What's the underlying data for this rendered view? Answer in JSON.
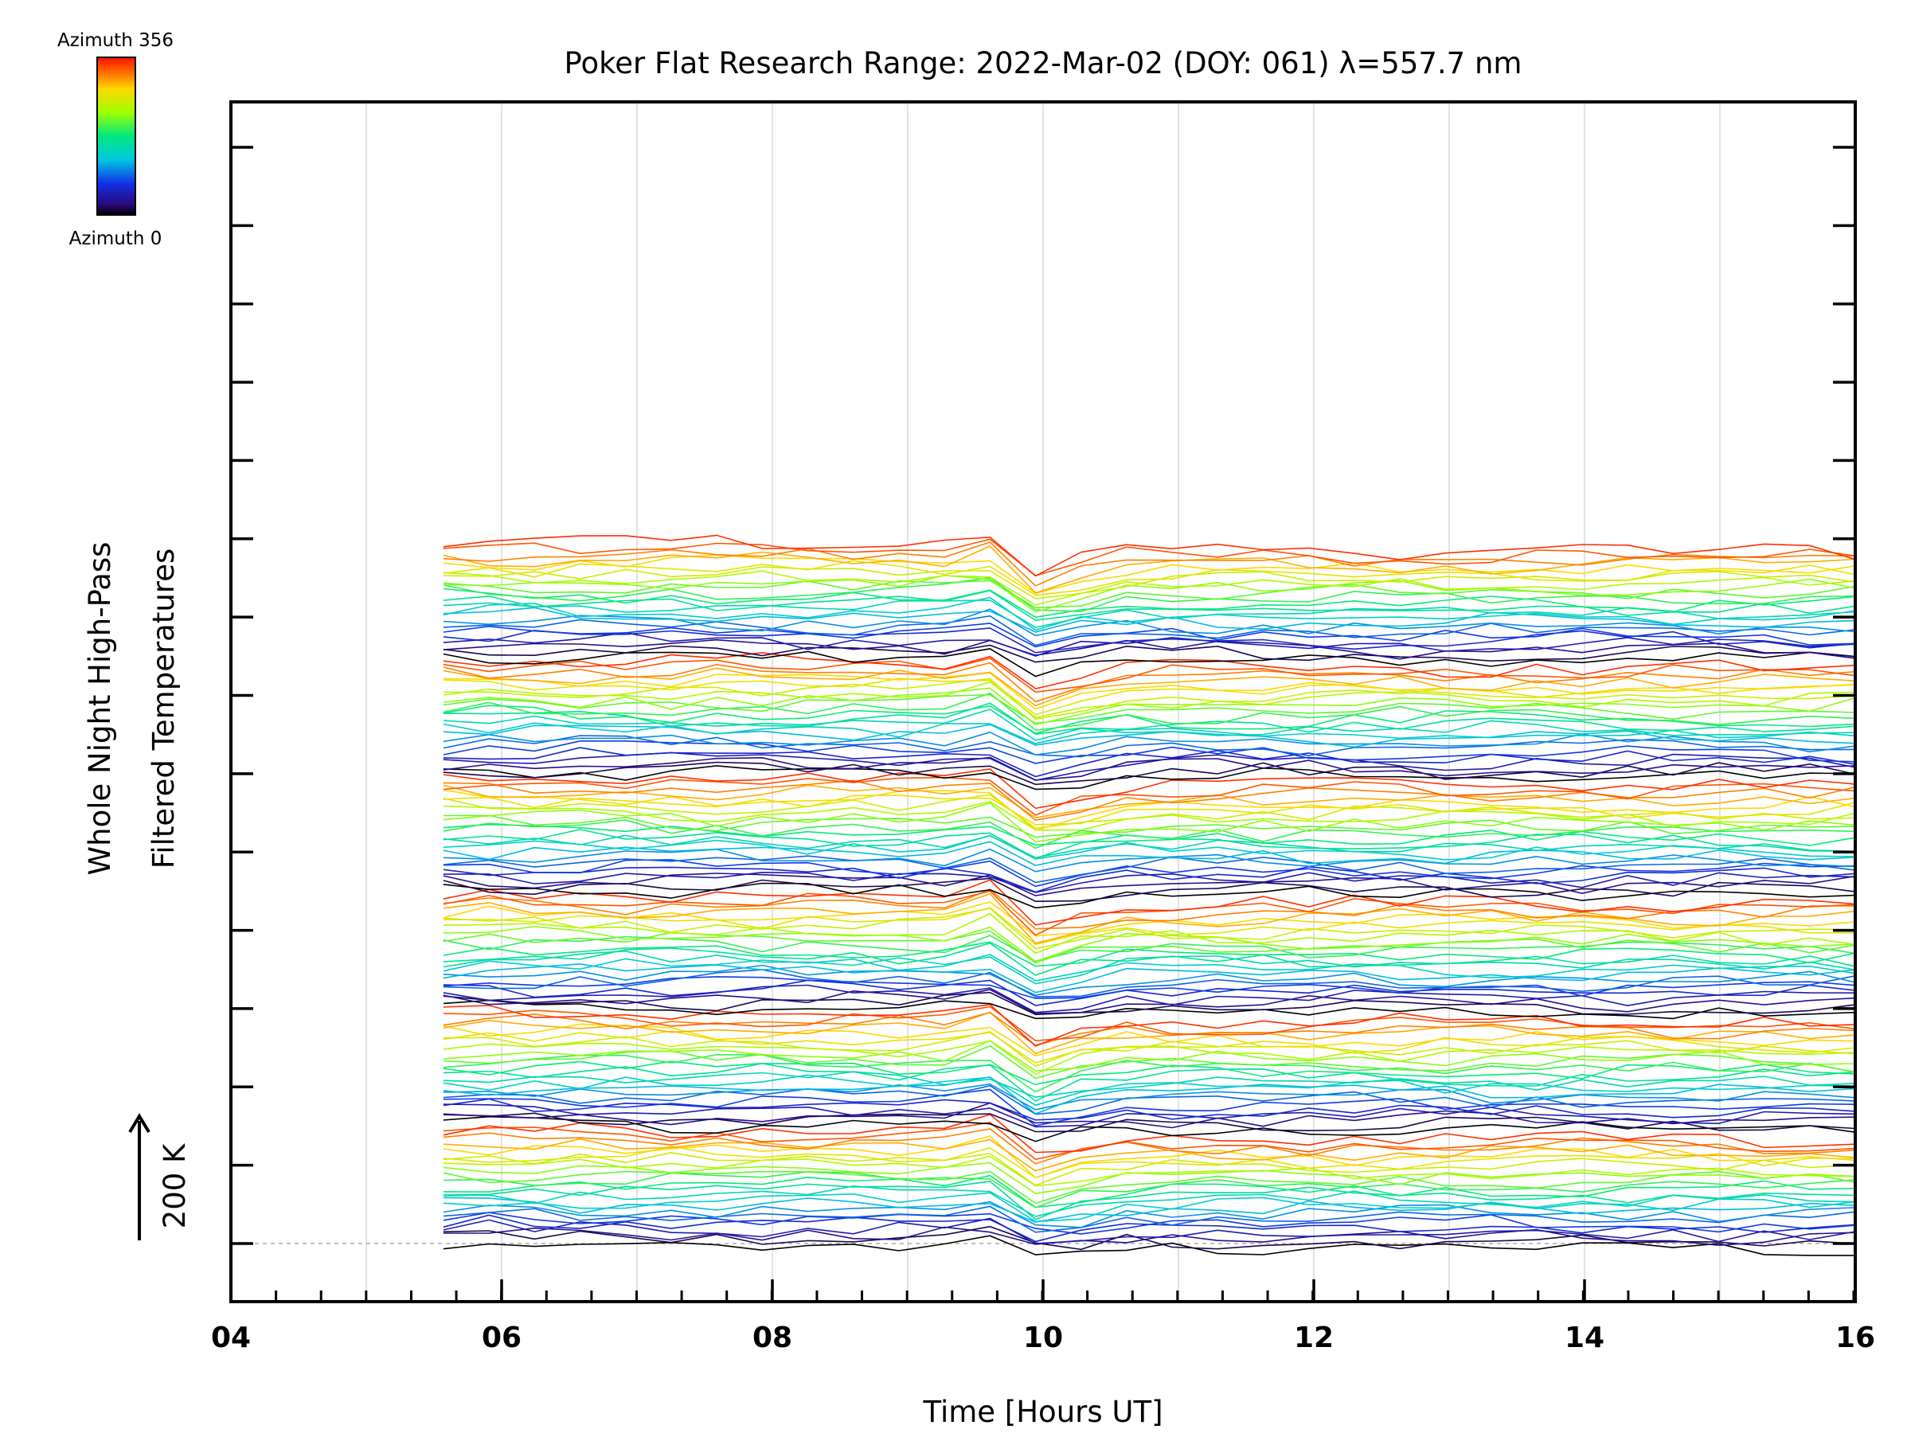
{
  "chart_data": {
    "type": "line",
    "title": "Poker Flat Research Range: 2022-Mar-02 (DOY: 061) λ=557.7 nm",
    "xlabel": "Time [Hours UT]",
    "ylabel_line1": "Whole Night High-Pass",
    "ylabel_line2": "Filtered Temperatures",
    "scale_label": "200 K",
    "xlim": [
      4,
      16
    ],
    "x_tick_labels": [
      "04",
      "06",
      "08",
      "10",
      "12",
      "14",
      "16"
    ],
    "x_ticks": [
      4,
      6,
      8,
      10,
      12,
      14,
      16
    ],
    "x_minor_step": 0.333,
    "x_grid": [
      5,
      6,
      7,
      8,
      9,
      10,
      11,
      12,
      13,
      14,
      15,
      16
    ],
    "y_tick_count": 15,
    "legend": {
      "top_label": "Azimuth 356",
      "bottom_label": "Azimuth 0",
      "azimuth_min": 0,
      "azimuth_max": 356,
      "colormap": "rainbow"
    },
    "series_count": 144,
    "series_per_group": 24,
    "azimuth_step_deg": 15,
    "x_start": 5.57,
    "x_end": 16,
    "sample_count": 32,
    "event": {
      "rise_start": 9.3,
      "peak": 9.5,
      "min": 9.8,
      "recover": 10.5
    },
    "colors": {
      "axes": "#000000",
      "grid": "#d9d9d9",
      "baseline": "#aaaaaa"
    }
  }
}
